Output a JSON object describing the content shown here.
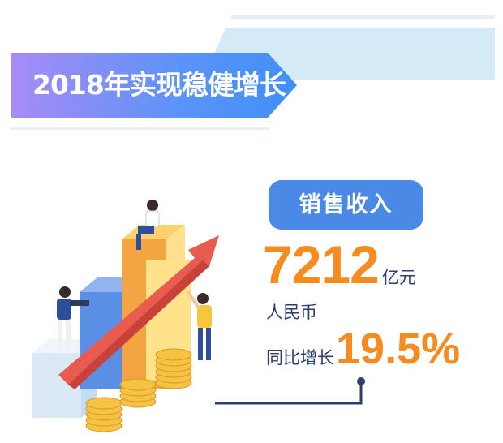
{
  "header": {
    "title": "2018年实现稳健增长"
  },
  "metric": {
    "label": "销售收入",
    "value": "7212",
    "unit": "亿元",
    "currency": "人民币",
    "growth_label": "同比增长",
    "growth_value": "19.5%"
  },
  "colors": {
    "accent_orange": "#f68b1f",
    "pill_blue": "#4a8ae6",
    "text_navy": "#2a3f6b",
    "arrow_red": "#e95a4f"
  }
}
